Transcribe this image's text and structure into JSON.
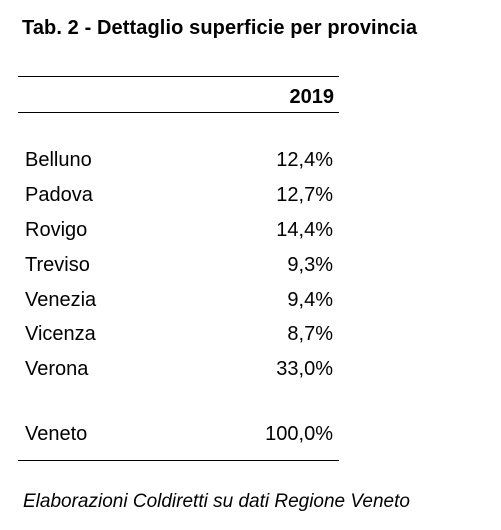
{
  "title": "Tab. 2 - Dettaglio superficie per provincia",
  "table": {
    "column_header": "2019",
    "rows": [
      {
        "label": "Belluno",
        "value": "12,4%"
      },
      {
        "label": "Padova",
        "value": "12,7%"
      },
      {
        "label": "Rovigo",
        "value": "14,4%"
      },
      {
        "label": "Treviso",
        "value": "9,3%"
      },
      {
        "label": "Venezia",
        "value": "9,4%"
      },
      {
        "label": "Vicenza",
        "value": "8,7%"
      },
      {
        "label": "Verona",
        "value": "33,0%"
      }
    ],
    "total": {
      "label": "Veneto",
      "value": "100,0%"
    }
  },
  "source": "Elaborazioni Coldiretti su dati Regione Veneto"
}
